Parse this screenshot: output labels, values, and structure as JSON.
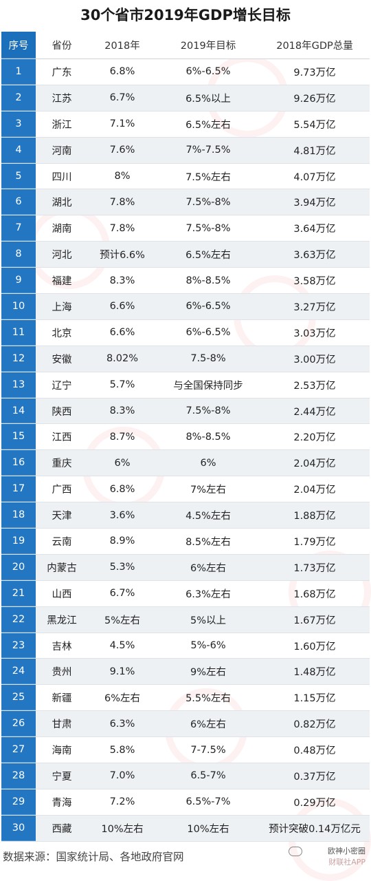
{
  "title": "30个省市2019年GDP增长目标",
  "table": {
    "headers": [
      "序号",
      "省份",
      "2018年",
      "2019年目标",
      "2018年GDP总量"
    ],
    "rows": [
      [
        "1",
        "广东",
        "6.8%",
        "6%-6.5%",
        "9.73万亿"
      ],
      [
        "2",
        "江苏",
        "6.7%",
        "6.5%以上",
        "9.26万亿"
      ],
      [
        "3",
        "浙江",
        "7.1%",
        "6.5%左右",
        "5.54万亿"
      ],
      [
        "4",
        "河南",
        "7.6%",
        "7%-7.5%",
        "4.81万亿"
      ],
      [
        "5",
        "四川",
        "8%",
        "7.5%左右",
        "4.07万亿"
      ],
      [
        "6",
        "湖北",
        "7.8%",
        "7.5%-8%",
        "3.94万亿"
      ],
      [
        "7",
        "湖南",
        "7.8%",
        "7.5%-8%",
        "3.64万亿"
      ],
      [
        "8",
        "河北",
        "预计6.6%",
        "6.5%左右",
        "3.63万亿"
      ],
      [
        "9",
        "福建",
        "8.3%",
        "8%-8.5%",
        "3.58万亿"
      ],
      [
        "10",
        "上海",
        "6.6%",
        "6%-6.5%",
        "3.27万亿"
      ],
      [
        "11",
        "北京",
        "6.6%",
        "6%-6.5%",
        "3.03万亿"
      ],
      [
        "12",
        "安徽",
        "8.02%",
        "7.5-8%",
        "3.00万亿"
      ],
      [
        "13",
        "辽宁",
        "5.7%",
        "与全国保持同步",
        "2.53万亿"
      ],
      [
        "14",
        "陕西",
        "8.3%",
        "7.5%-8%",
        "2.44万亿"
      ],
      [
        "15",
        "江西",
        "8.7%",
        "8%-8.5%",
        "2.20万亿"
      ],
      [
        "16",
        "重庆",
        "6%",
        "6%",
        "2.04万亿"
      ],
      [
        "17",
        "广西",
        "6.8%",
        "7%左右",
        "2.04万亿"
      ],
      [
        "18",
        "天津",
        "3.6%",
        "4.5%左右",
        "1.88万亿"
      ],
      [
        "19",
        "云南",
        "8.9%",
        "8.5%左右",
        "1.79万亿"
      ],
      [
        "20",
        "内蒙古",
        "5.3%",
        "6%左右",
        "1.73万亿"
      ],
      [
        "21",
        "山西",
        "6.7%",
        "6.3%左右",
        "1.68万亿"
      ],
      [
        "22",
        "黑龙江",
        "5%左右",
        "5%以上",
        "1.67万亿"
      ],
      [
        "23",
        "吉林",
        "4.5%",
        "5%-6%",
        "1.60万亿"
      ],
      [
        "24",
        "贵州",
        "9.1%",
        "9%左右",
        "1.48万亿"
      ],
      [
        "25",
        "新疆",
        "6%左右",
        "5.5%左右",
        "1.15万亿"
      ],
      [
        "26",
        "甘肃",
        "6.3%",
        "6%左右",
        "0.82万亿"
      ],
      [
        "27",
        "海南",
        "5.8%",
        "7-7.5%",
        "0.48万亿"
      ],
      [
        "28",
        "宁夏",
        "7.0%",
        "6.5-7%",
        "0.37万亿"
      ],
      [
        "29",
        "青海",
        "7.2%",
        "6.5%-7%",
        "0.29万亿"
      ],
      [
        "30",
        "西藏",
        "10%左右",
        "10%左右",
        "预计突破0.14万亿元"
      ]
    ]
  },
  "source": "数据来源：国家统计局、各地政府官网",
  "brand": {
    "line1": "欧神小密圈",
    "line2": "财联社APP"
  },
  "colors": {
    "index_column": "#2377c2",
    "alt_row": "#eef1f4",
    "watermark": "#dc3c3c"
  }
}
